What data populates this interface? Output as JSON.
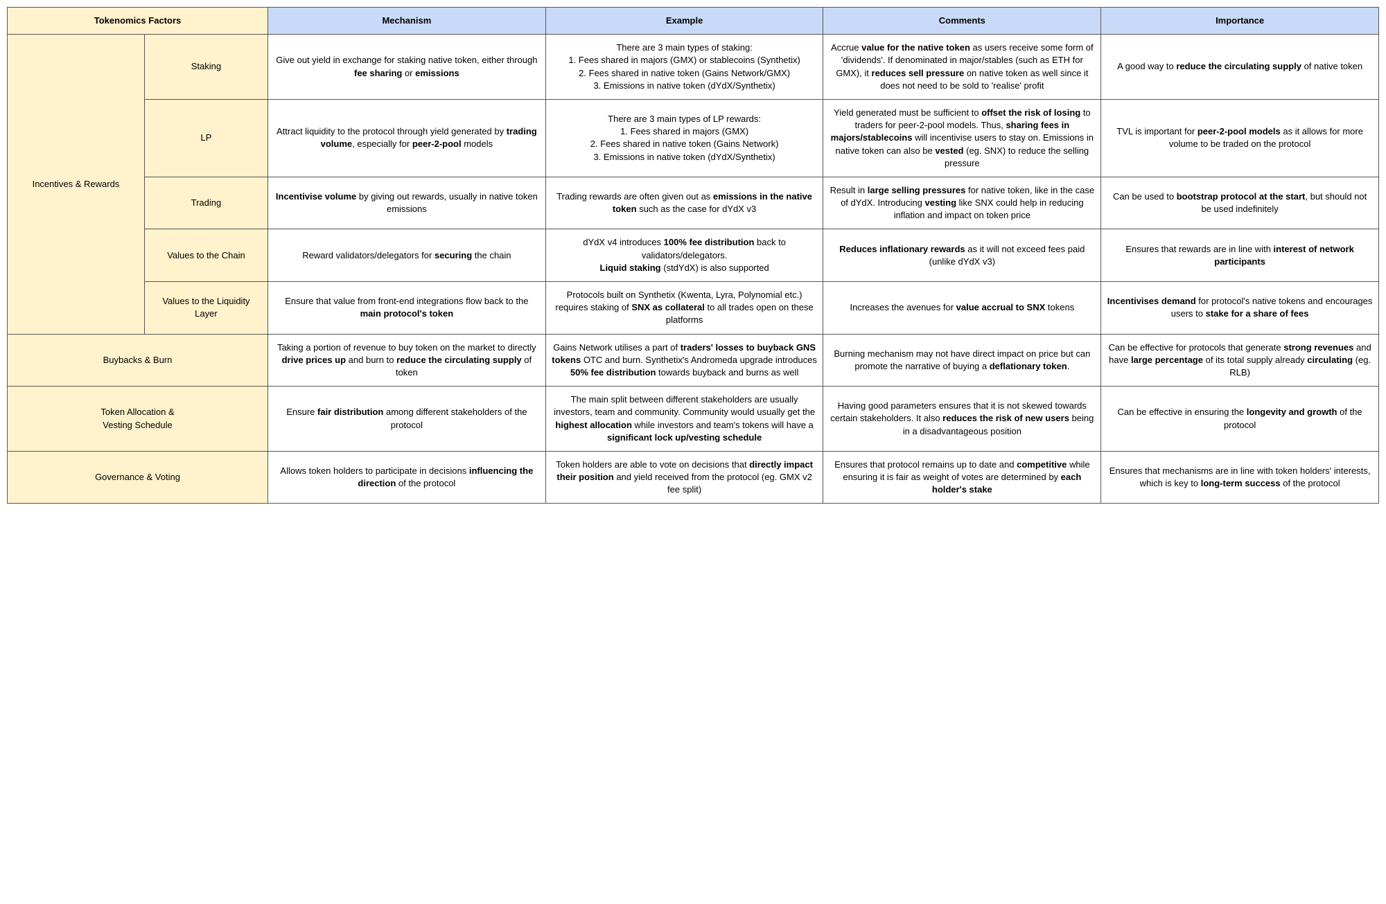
{
  "headers": {
    "factors": "Tokenomics Factors",
    "mechanism": "Mechanism",
    "example": "Example",
    "comments": "Comments",
    "importance": "Importance"
  },
  "groups": {
    "incentives": "Incentives & Rewards"
  },
  "rows": {
    "staking": {
      "label": "Staking",
      "mechanism": "Give out yield in exchange for staking native token, either through <b>fee sharing</b> or <b>emissions</b>",
      "example": "There are 3 main types of staking:<br>1. Fees shared in majors (GMX) or stablecoins (Synthetix)<br>2. Fees shared in native token (Gains Network/GMX)<br>3. Emissions in native token (dYdX/Synthetix)",
      "comments": "Accrue <b>value for the native token</b> as users receive some form of 'dividends'. If denominated in major/stables (such as ETH for GMX), it <b>reduces sell pressure</b> on native token as well since it does not need to be sold to 'realise' profit",
      "importance": "A good way to <b>reduce the circulating supply</b> of native token"
    },
    "lp": {
      "label": "LP",
      "mechanism": "Attract liquidity to the protocol through yield generated by <b>trading volume</b>, especially for <b>peer-2-pool</b> models",
      "example": "There are 3 main types of LP rewards:<br>1. Fees shared in majors (GMX)<br>2. Fees shared in native token (Gains Network)<br>3. Emissions in native token (dYdX/Synthetix)",
      "comments": "Yield generated must be sufficient to <b>offset the risk of losing</b> to traders for peer-2-pool models. Thus, <b>sharing fees in majors/stablecoins</b> will incentivise users to stay on. Emissions in native token can also be <b>vested</b> (eg. SNX) to reduce the selling pressure",
      "importance": "TVL is important for <b>peer-2-pool models</b> as it allows for more volume to be traded on the protocol"
    },
    "trading": {
      "label": "Trading",
      "mechanism": "<b>Incentivise volume</b> by giving out rewards, usually in native token emissions",
      "example": "Trading rewards are often given out as <b>emissions in the native token</b> such as the case for dYdX v3",
      "comments": "Result in <b>large selling pressures</b> for native token, like in the case of dYdX. Introducing <b>vesting</b> like SNX could help in reducing inflation and impact on token price",
      "importance": "Can be used to <b>bootstrap protocol at the start</b>, but should not be used indefinitely"
    },
    "chain": {
      "label": "Values to the Chain",
      "mechanism": "Reward validators/delegators for <b>securing</b> the chain",
      "example": "dYdX v4 introduces <b>100% fee distribution</b> back to validators/delegators.<br><b>Liquid staking</b> (stdYdX) is also supported",
      "comments": "<b>Reduces inflationary rewards</b> as it will not exceed fees paid (unlike dYdX v3)",
      "importance": "Ensures that rewards are in line with <b>interest of network participants</b>"
    },
    "liquidity": {
      "label": "Values to the Liquidity Layer",
      "mechanism": "Ensure that value from front-end integrations flow back to the <b>main protocol's token</b>",
      "example": "Protocols built on Synthetix (Kwenta, Lyra, Polynomial etc.) requires staking of <b>SNX as collateral</b> to all trades open on these platforms",
      "comments": "Increases the avenues for <b>value accrual to SNX</b> tokens",
      "importance": "<b>Incentivises demand</b> for protocol's native tokens and encourages users to <b>stake for a share of fees</b>"
    },
    "buyback": {
      "label": "Buybacks & Burn",
      "mechanism": "Taking a portion of revenue to buy token on the market to directly <b>drive prices up</b> and burn to <b>reduce the circulating supply</b> of token",
      "example": "Gains Network utilises a part of <b>traders' losses to buyback GNS tokens</b> OTC and burn. Synthetix's Andromeda upgrade introduces <b>50% fee distribution</b> towards buyback and burns as well",
      "comments": "Burning mechanism may not have direct impact on price but can promote the narrative of buying a <b>deflationary token</b>.",
      "importance": "Can be effective for protocols that generate <b>strong revenues</b> and have <b>large percentage</b> of its total supply already <b>circulating</b> (eg. RLB)"
    },
    "allocation": {
      "label": "Token Allocation &<br>Vesting Schedule",
      "mechanism": "Ensure <b>fair distribution</b> among different stakeholders of the protocol",
      "example": "The main split between different stakeholders are usually investors, team and community. Community would usually get the <b>highest allocation</b> while investors and team's tokens will have a <b>significant lock up/vesting schedule</b>",
      "comments": "Having good parameters ensures that it is not skewed towards certain stakeholders. It also <b>reduces the risk of new users</b> being in a disadvantageous position",
      "importance": "Can be effective in ensuring the <b>longevity and growth</b> of the protocol"
    },
    "governance": {
      "label": "Governance & Voting",
      "mechanism": "Allows token holders to participate in decisions <b>influencing the direction</b> of the protocol",
      "example": "Token holders are able to vote on decisions that <b>directly impact their position</b> and yield received from the protocol (eg. GMX v2 fee split)",
      "comments": "Ensures that protocol remains up to date and <b>competitive</b> while ensuring it is fair as weight of votes are determined by <b>each holder's stake</b>",
      "importance": "Ensures that mechanisms are in line with token holders' interests, which is key to <b>long-term success</b> of the protocol"
    }
  }
}
